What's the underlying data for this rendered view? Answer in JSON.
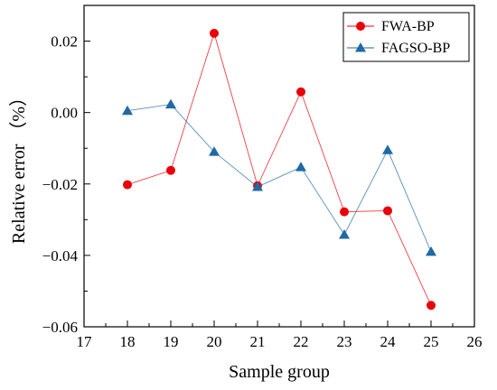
{
  "chart_data": {
    "type": "line",
    "xlabel": "Sample group",
    "ylabel": "Relative error （%）",
    "xlim": [
      17,
      26
    ],
    "ylim": [
      -0.06,
      0.03
    ],
    "xticks": [
      17,
      18,
      19,
      20,
      21,
      22,
      23,
      24,
      25,
      26
    ],
    "yticks": [
      -0.06,
      -0.04,
      -0.02,
      0.0,
      0.02
    ],
    "ytick_labels": [
      "−0.06",
      "−0.04",
      "−0.02",
      "0.00",
      "0.02"
    ],
    "legend_position": "top-right",
    "grid": false,
    "x": [
      18,
      19,
      20,
      21,
      22,
      23,
      24,
      25
    ],
    "series": [
      {
        "name": "FWA-BP",
        "color": "#e8000b",
        "marker": "circle",
        "values": [
          -0.0202,
          -0.0162,
          0.0222,
          -0.0205,
          0.0058,
          -0.0278,
          -0.0275,
          -0.054
        ]
      },
      {
        "name": "FAGSO-BP",
        "color": "#1f6aa5",
        "marker": "triangle",
        "values": [
          0.0005,
          0.0023,
          -0.011,
          -0.0208,
          -0.0153,
          -0.0342,
          -0.0105,
          -0.039
        ]
      }
    ]
  }
}
